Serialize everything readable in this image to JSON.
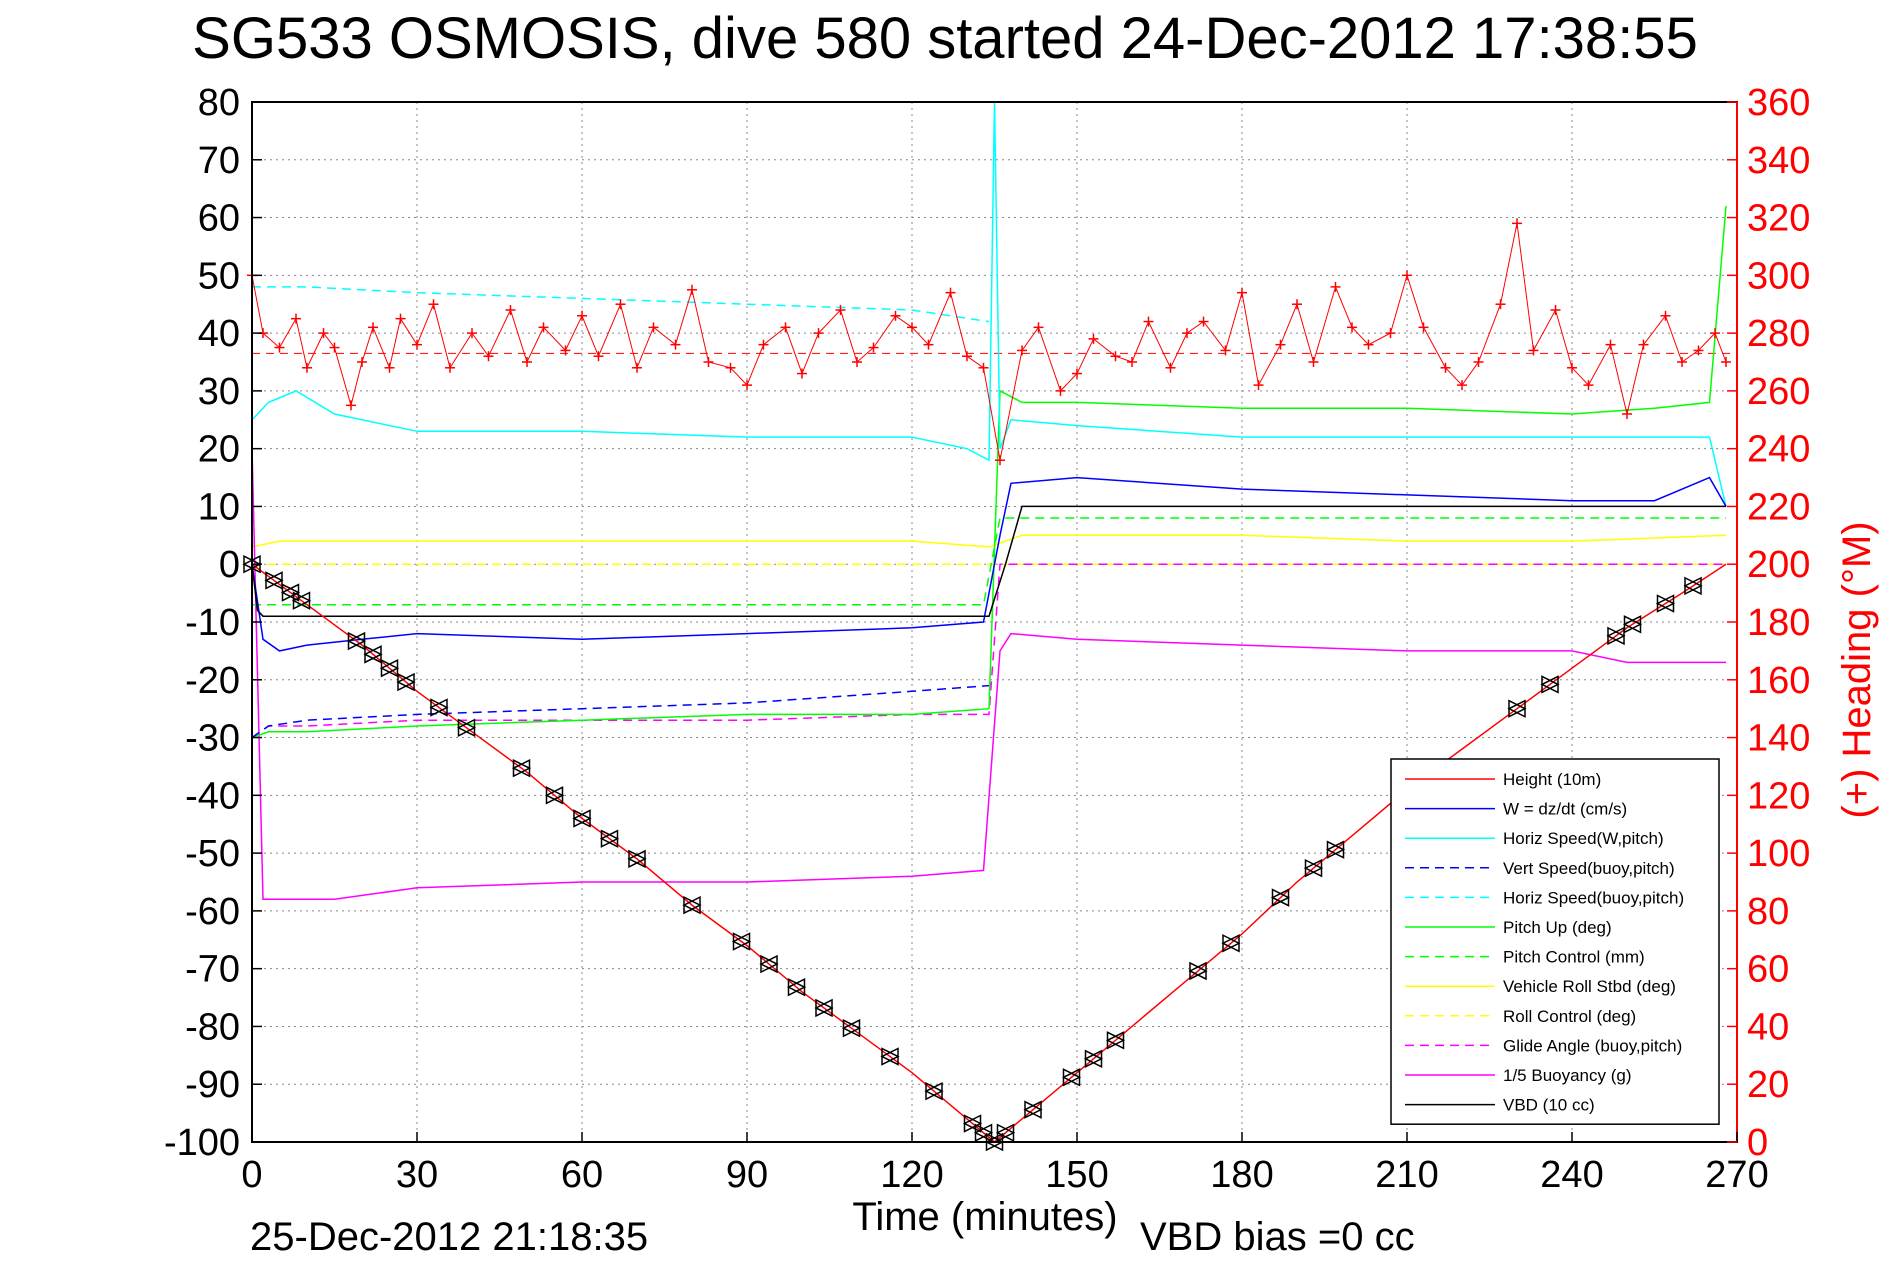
{
  "chart_data": {
    "type": "line",
    "title": "SG533 OSMOSIS, dive 580 started 24-Dec-2012 17:38:55",
    "xlabel": "Time (minutes)",
    "ylabel": "",
    "y2label": "(+) Heading (°M)",
    "footer_left": "25-Dec-2012 21:18:35",
    "footer_right": "VBD bias =0 cc",
    "xlim": [
      0,
      270
    ],
    "ylim": [
      -100,
      80
    ],
    "y2lim": [
      0,
      360
    ],
    "xticks": [
      "0",
      "30",
      "60",
      "90",
      "120",
      "150",
      "180",
      "210",
      "240",
      "270"
    ],
    "yticks": [
      "80",
      "70",
      "60",
      "50",
      "40",
      "30",
      "20",
      "10",
      "0",
      "-10",
      "-20",
      "-30",
      "-40",
      "-50",
      "-60",
      "-70",
      "-80",
      "-90",
      "-100"
    ],
    "y2ticks": [
      "360",
      "340",
      "320",
      "300",
      "280",
      "260",
      "240",
      "220",
      "200",
      "180",
      "160",
      "140",
      "120",
      "100",
      "80",
      "60",
      "40",
      "20",
      "0"
    ],
    "grid": true,
    "legend_position": "bottom-right",
    "colors": {
      "height": "#ff0000",
      "w": "#0000ff",
      "horiz_speed": "#00ffff",
      "pitch": "#00ff00",
      "roll": "#ffff00",
      "glide": "#ff00ff",
      "buoyancy": "#ff00ff",
      "vbd": "#000000",
      "heading": "#ff0000"
    },
    "series": [
      {
        "name": "Height (10m)",
        "style": "solid",
        "color": "#ff0000",
        "x": [
          0,
          10,
          20,
          30,
          40,
          50,
          60,
          70,
          80,
          90,
          100,
          110,
          120,
          130,
          135,
          140,
          150,
          160,
          170,
          180,
          190,
          200,
          210,
          220,
          230,
          240,
          250,
          260,
          268
        ],
        "y": [
          0,
          -7,
          -14,
          -22,
          -29,
          -36,
          -44,
          -51,
          -59,
          -66,
          -74,
          -81,
          -88,
          -96,
          -100,
          -96,
          -88,
          -80,
          -72,
          -64,
          -55,
          -47,
          -39,
          -32,
          -25,
          -18,
          -11,
          -5,
          0
        ]
      },
      {
        "name": "W = dz/dt (cm/s)",
        "style": "solid",
        "color": "#0000ff",
        "x": [
          0,
          2,
          5,
          10,
          20,
          30,
          60,
          90,
          120,
          133,
          136,
          138,
          150,
          180,
          210,
          240,
          255,
          265,
          268
        ],
        "y": [
          0,
          -13,
          -15,
          -14,
          -13,
          -12,
          -13,
          -12,
          -11,
          -10,
          5,
          14,
          15,
          13,
          12,
          11,
          11,
          15,
          10
        ]
      },
      {
        "name": "Horiz Speed(W,pitch)",
        "style": "solid",
        "color": "#00ffff",
        "x": [
          0,
          3,
          8,
          15,
          30,
          60,
          90,
          120,
          130,
          134,
          135,
          136,
          138,
          150,
          180,
          210,
          240,
          255,
          265,
          268
        ],
        "y": [
          25,
          28,
          30,
          26,
          23,
          23,
          22,
          22,
          20,
          18,
          80,
          20,
          25,
          24,
          22,
          22,
          22,
          22,
          22,
          10
        ]
      },
      {
        "name": "Vert Speed(buoy,pitch)",
        "style": "dashed",
        "color": "#0000ff",
        "x": [
          0,
          3,
          10,
          30,
          60,
          90,
          120,
          134
        ],
        "y": [
          -30,
          -28,
          -27,
          -26,
          -25,
          -24,
          -22,
          -21
        ]
      },
      {
        "name": "Horiz Speed(buoy,pitch)",
        "style": "dashed",
        "color": "#00ffff",
        "x": [
          0,
          10,
          30,
          60,
          90,
          120,
          134
        ],
        "y": [
          48,
          48,
          47,
          46,
          45,
          44,
          42
        ]
      },
      {
        "name": "Pitch Up (deg)",
        "style": "solid",
        "color": "#00ff00",
        "x": [
          0,
          3,
          10,
          30,
          60,
          90,
          120,
          134,
          136,
          140,
          150,
          180,
          210,
          240,
          255,
          265,
          268
        ],
        "y": [
          -30,
          -29,
          -29,
          -28,
          -27,
          -26,
          -26,
          -25,
          30,
          28,
          28,
          27,
          27,
          26,
          27,
          28,
          62
        ]
      },
      {
        "name": "Pitch Control (mm)",
        "style": "dashed",
        "color": "#00ff00",
        "x": [
          0,
          3,
          30,
          60,
          90,
          120,
          133,
          136,
          140,
          200,
          268
        ],
        "y": [
          -7,
          -7,
          -7,
          -7,
          -7,
          -7,
          -7,
          8,
          8,
          8,
          8
        ]
      },
      {
        "name": "Vehicle Roll Stbd (deg)",
        "style": "solid",
        "color": "#ffff00",
        "x": [
          0,
          5,
          30,
          60,
          90,
          120,
          134,
          140,
          180,
          210,
          240,
          268
        ],
        "y": [
          3,
          4,
          4,
          4,
          4,
          4,
          3,
          5,
          5,
          4,
          4,
          5
        ]
      },
      {
        "name": "Roll Control (deg)",
        "style": "dashed",
        "color": "#ffff00",
        "x": [
          0,
          30,
          60,
          90,
          120,
          134,
          136,
          180,
          240,
          268
        ],
        "y": [
          0,
          0,
          0,
          0,
          0,
          0,
          0,
          0,
          0,
          0
        ]
      },
      {
        "name": "Glide Angle (buoy,pitch)",
        "style": "dashed",
        "color": "#ff00ff",
        "x": [
          0,
          3,
          10,
          30,
          60,
          90,
          120,
          134,
          136,
          150,
          200,
          268
        ],
        "y": [
          -30,
          -28,
          -28,
          -27,
          -27,
          -27,
          -26,
          -26,
          0,
          0,
          0,
          0
        ]
      },
      {
        "name": "1/5 Buoyancy (g)",
        "style": "solid",
        "color": "#ff00ff",
        "x": [
          0,
          2,
          15,
          30,
          60,
          90,
          120,
          133,
          136,
          138,
          150,
          180,
          210,
          240,
          250,
          268
        ],
        "y": [
          20,
          -58,
          -58,
          -56,
          -55,
          -55,
          -54,
          -53,
          -15,
          -12,
          -13,
          -14,
          -15,
          -15,
          -17,
          -17
        ]
      },
      {
        "name": "VBD (10 cc)",
        "style": "solid",
        "color": "#000000",
        "x": [
          0,
          1,
          2,
          134,
          137,
          140,
          200,
          268
        ],
        "y": [
          0,
          -8,
          -9,
          -9,
          0,
          10,
          10,
          10
        ]
      }
    ],
    "heading_series": {
      "name": "(+) Heading",
      "axis": "right",
      "marker": "+",
      "mean": 273,
      "x": [
        0,
        2,
        5,
        8,
        10,
        13,
        15,
        18,
        20,
        22,
        25,
        27,
        30,
        33,
        36,
        40,
        43,
        47,
        50,
        53,
        57,
        60,
        63,
        67,
        70,
        73,
        77,
        80,
        83,
        87,
        90,
        93,
        97,
        100,
        103,
        107,
        110,
        113,
        117,
        120,
        123,
        127,
        130,
        133,
        136,
        140,
        143,
        147,
        150,
        153,
        157,
        160,
        163,
        167,
        170,
        173,
        177,
        180,
        183,
        187,
        190,
        193,
        197,
        200,
        203,
        207,
        210,
        213,
        217,
        220,
        223,
        227,
        230,
        233,
        237,
        240,
        243,
        247,
        250,
        253,
        257,
        260,
        263,
        266,
        268
      ],
      "y": [
        300,
        280,
        275,
        285,
        268,
        280,
        275,
        255,
        270,
        282,
        268,
        285,
        276,
        290,
        268,
        280,
        272,
        288,
        270,
        282,
        274,
        286,
        272,
        290,
        268,
        282,
        276,
        295,
        270,
        268,
        262,
        276,
        282,
        266,
        280,
        288,
        270,
        275,
        286,
        282,
        276,
        294,
        272,
        268,
        236,
        274,
        282,
        260,
        266,
        278,
        272,
        270,
        284,
        268,
        280,
        284,
        274,
        294,
        262,
        276,
        290,
        270,
        296,
        282,
        276,
        280,
        300,
        282,
        268,
        262,
        270,
        290,
        318,
        274,
        288,
        268,
        262,
        276,
        252,
        276,
        286,
        270,
        274,
        280,
        270
      ]
    },
    "legend": [
      {
        "label": "Height (10m)",
        "color": "#ff0000",
        "style": "solid"
      },
      {
        "label": "W = dz/dt (cm/s)",
        "color": "#0000ff",
        "style": "solid"
      },
      {
        "label": "Horiz Speed(W,pitch)",
        "color": "#00ffff",
        "style": "solid"
      },
      {
        "label": "Vert Speed(buoy,pitch)",
        "color": "#0000ff",
        "style": "dashed"
      },
      {
        "label": "Horiz Speed(buoy,pitch)",
        "color": "#00ffff",
        "style": "dashed"
      },
      {
        "label": "Pitch Up (deg)",
        "color": "#00ff00",
        "style": "solid"
      },
      {
        "label": "Pitch Control (mm)",
        "color": "#00ff00",
        "style": "dashed"
      },
      {
        "label": "Vehicle Roll Stbd (deg)",
        "color": "#ffff00",
        "style": "solid"
      },
      {
        "label": "Roll Control (deg)",
        "color": "#ffff00",
        "style": "dashed"
      },
      {
        "label": "Glide Angle (buoy,pitch)",
        "color": "#ff00ff",
        "style": "dashed"
      },
      {
        "label": "1/5 Buoyancy (g)",
        "color": "#ff00ff",
        "style": "solid"
      },
      {
        "label": "VBD (10 cc)",
        "color": "#000000",
        "style": "solid"
      }
    ],
    "height_markers_x": [
      0,
      4,
      7,
      9,
      19,
      22,
      25,
      28,
      34,
      39,
      49,
      55,
      60,
      65,
      70,
      80,
      89,
      94,
      99,
      104,
      109,
      116,
      124,
      131,
      133,
      135,
      137,
      142,
      149,
      153,
      157,
      172,
      178,
      187,
      193,
      197,
      230,
      236,
      248,
      251,
      257,
      262
    ]
  }
}
